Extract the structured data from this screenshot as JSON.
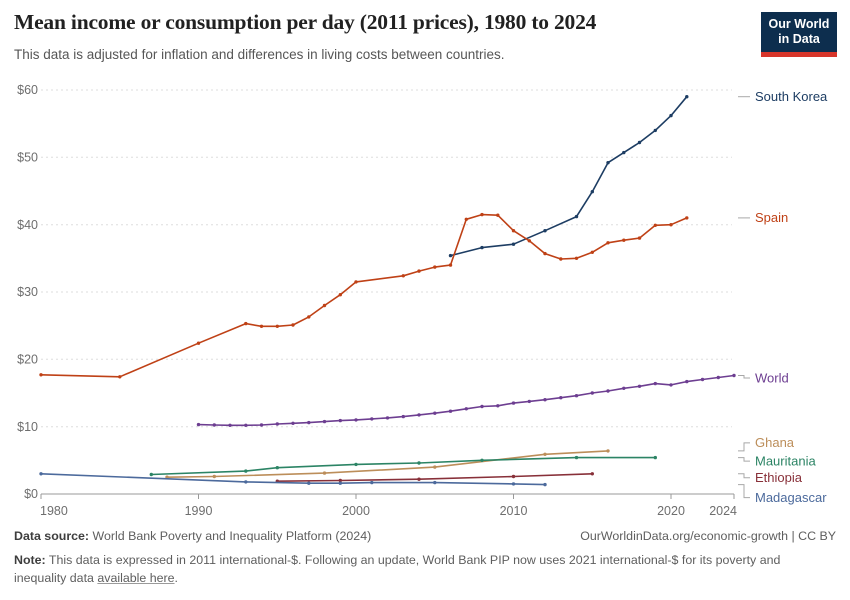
{
  "header": {
    "title": "Mean income or consumption per day (2011 prices), 1980 to 2024",
    "subtitle": "This data is adjusted for inflation and differences in living costs between countries.",
    "logo": {
      "line1": "Our World",
      "line2": "in Data"
    }
  },
  "colors": {
    "logo_bg": "#0d2e4e",
    "logo_bar": "#d7352a",
    "grid": "#dddddd",
    "axis": "#999999",
    "tick_text": "#6e6e6e",
    "connector": "#a8a8a8",
    "title_text": "#212121",
    "subtitle_text": "#565656"
  },
  "chart_data": {
    "type": "line",
    "title": "Mean income or consumption per day (2011 prices), 1980 to 2024",
    "xlabel": "",
    "ylabel": "",
    "grid": true,
    "legend_position": "right-edge-labels",
    "xlim": [
      1980,
      2024
    ],
    "ylim": [
      0,
      60
    ],
    "x_ticks": [
      {
        "value": 1980,
        "label": "1980",
        "align": "start"
      },
      {
        "value": 1990,
        "label": "1990"
      },
      {
        "value": 2000,
        "label": "2000"
      },
      {
        "value": 2010,
        "label": "2010"
      },
      {
        "value": 2020,
        "label": "2020"
      },
      {
        "value": 2024,
        "label": "2024",
        "align": "end"
      }
    ],
    "y_ticks": [
      {
        "value": 0,
        "label": "$0"
      },
      {
        "value": 10,
        "label": "$10"
      },
      {
        "value": 20,
        "label": "$20"
      },
      {
        "value": 30,
        "label": "$30"
      },
      {
        "value": 40,
        "label": "$40"
      },
      {
        "value": 50,
        "label": "$50"
      },
      {
        "value": 60,
        "label": "$60"
      }
    ],
    "series": [
      {
        "name": "South Korea",
        "color": "#1d3d63",
        "label_dy": 0,
        "points": [
          [
            2006,
            35.4
          ],
          [
            2008,
            36.6
          ],
          [
            2010,
            37.1
          ],
          [
            2012,
            39.1
          ],
          [
            2014,
            41.2
          ],
          [
            2015,
            44.9
          ],
          [
            2016,
            49.2
          ],
          [
            2017,
            50.7
          ],
          [
            2018,
            52.2
          ],
          [
            2019,
            54.0
          ],
          [
            2020,
            56.2
          ],
          [
            2021,
            59.0
          ]
        ]
      },
      {
        "name": "Spain",
        "color": "#bf4116",
        "label_dy": 0,
        "points": [
          [
            1980,
            17.7
          ],
          [
            1985,
            17.4
          ],
          [
            1990,
            22.4
          ],
          [
            1993,
            25.3
          ],
          [
            1994,
            24.9
          ],
          [
            1995,
            24.9
          ],
          [
            1996,
            25.1
          ],
          [
            1997,
            26.3
          ],
          [
            1998,
            28.0
          ],
          [
            1999,
            29.6
          ],
          [
            2000,
            31.5
          ],
          [
            2003,
            32.4
          ],
          [
            2004,
            33.1
          ],
          [
            2005,
            33.7
          ],
          [
            2006,
            34.0
          ],
          [
            2007,
            40.8
          ],
          [
            2008,
            41.5
          ],
          [
            2009,
            41.4
          ],
          [
            2010,
            39.1
          ],
          [
            2011,
            37.6
          ],
          [
            2012,
            35.7
          ],
          [
            2013,
            34.9
          ],
          [
            2014,
            35.0
          ],
          [
            2015,
            35.9
          ],
          [
            2016,
            37.3
          ],
          [
            2017,
            37.7
          ],
          [
            2018,
            38.0
          ],
          [
            2019,
            39.9
          ],
          [
            2020,
            40.0
          ],
          [
            2021,
            41.0
          ]
        ]
      },
      {
        "name": "World",
        "color": "#6d3e91",
        "label_dy": 2.5,
        "points": [
          [
            1990,
            10.3
          ],
          [
            1991,
            10.25
          ],
          [
            1992,
            10.2
          ],
          [
            1993,
            10.2
          ],
          [
            1994,
            10.25
          ],
          [
            1995,
            10.4
          ],
          [
            1996,
            10.5
          ],
          [
            1997,
            10.6
          ],
          [
            1998,
            10.75
          ],
          [
            1999,
            10.9
          ],
          [
            2000,
            11.0
          ],
          [
            2001,
            11.15
          ],
          [
            2002,
            11.3
          ],
          [
            2003,
            11.5
          ],
          [
            2004,
            11.75
          ],
          [
            2005,
            12.0
          ],
          [
            2006,
            12.3
          ],
          [
            2007,
            12.65
          ],
          [
            2008,
            13.0
          ],
          [
            2009,
            13.1
          ],
          [
            2010,
            13.5
          ],
          [
            2011,
            13.75
          ],
          [
            2012,
            14.0
          ],
          [
            2013,
            14.3
          ],
          [
            2014,
            14.6
          ],
          [
            2015,
            15.0
          ],
          [
            2016,
            15.3
          ],
          [
            2017,
            15.7
          ],
          [
            2018,
            16.0
          ],
          [
            2019,
            16.4
          ],
          [
            2020,
            16.2
          ],
          [
            2021,
            16.7
          ],
          [
            2022,
            17.0
          ],
          [
            2023,
            17.3
          ],
          [
            2024,
            17.6
          ]
        ]
      },
      {
        "name": "Ghana",
        "color": "#bc8e5a",
        "label_dy": -8,
        "points": [
          [
            1988,
            2.5
          ],
          [
            1991,
            2.6
          ],
          [
            1998,
            3.1
          ],
          [
            2005,
            4.0
          ],
          [
            2012,
            5.9
          ],
          [
            2016,
            6.4
          ]
        ]
      },
      {
        "name": "Mauritania",
        "color": "#2c8465",
        "label_dy": 3.5,
        "points": [
          [
            1987,
            2.9
          ],
          [
            1993,
            3.4
          ],
          [
            1995,
            3.9
          ],
          [
            2000,
            4.4
          ],
          [
            2004,
            4.6
          ],
          [
            2008,
            5.0
          ],
          [
            2014,
            5.4
          ],
          [
            2019,
            5.4
          ]
        ]
      },
      {
        "name": "Ethiopia",
        "color": "#883039",
        "label_dy": 4,
        "points": [
          [
            1995,
            1.9
          ],
          [
            1999,
            2.0
          ],
          [
            2004,
            2.2
          ],
          [
            2010,
            2.6
          ],
          [
            2015,
            3.0
          ]
        ]
      },
      {
        "name": "Madagascar",
        "color": "#4c6a9c",
        "label_dy": 13,
        "points": [
          [
            1980,
            3.0
          ],
          [
            1993,
            1.8
          ],
          [
            1997,
            1.6
          ],
          [
            1999,
            1.6
          ],
          [
            2001,
            1.7
          ],
          [
            2005,
            1.7
          ],
          [
            2010,
            1.5
          ],
          [
            2012,
            1.4
          ]
        ]
      }
    ]
  },
  "footer": {
    "source_label": "Data source:",
    "source": "World Bank Poverty and Inequality Platform (2024)",
    "link": "OurWorldinData.org/economic-growth | CC BY",
    "note_label": "Note:",
    "note_before_link": "This data is expressed in 2011 international-$. Following an update, World Bank PIP now uses 2021 international-$ for its poverty and inequality data",
    "note_link": "available here",
    "note_after_link": "."
  }
}
